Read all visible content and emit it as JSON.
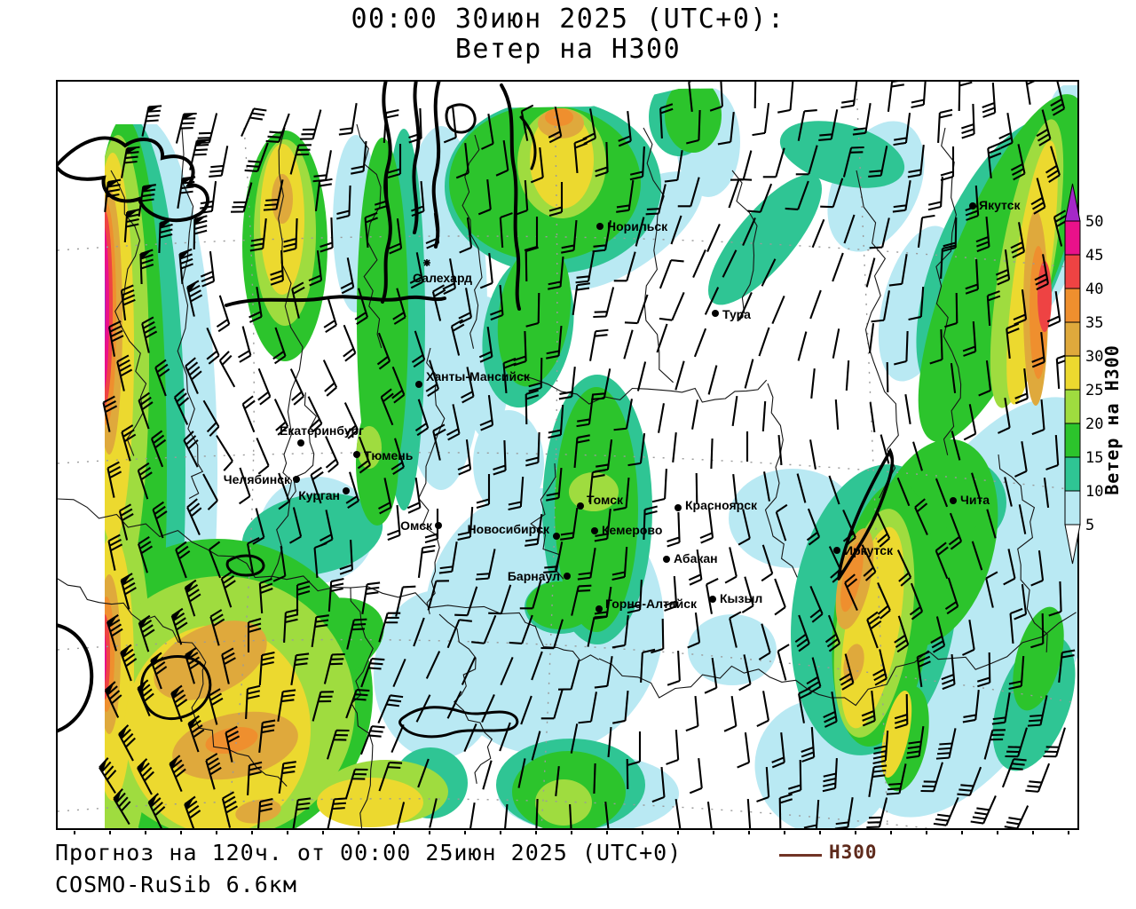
{
  "title": {
    "line1": "00:00 30июн 2025 (UTC+0):",
    "line2": "Ветер на H300"
  },
  "footer": {
    "forecast": "Прогноз на 120ч. от 00:00 25июн 2025 (UTC+0)",
    "model": "COSMO-RuSib 6.6км",
    "legend_label": "H300",
    "legend_line_color": "#713425"
  },
  "colorbar": {
    "title": "Ветер на H300",
    "tick_values": [
      50,
      45,
      40,
      35,
      30,
      25,
      20,
      15,
      10,
      5
    ],
    "segment_colors_top_to_bottom": [
      "#e9118a",
      "#ee4343",
      "#ef8f2e",
      "#dfa93c",
      "#ecd92f",
      "#9fdc3f",
      "#2cc42c",
      "#2fc594",
      "#b9e9f3"
    ],
    "above_max_color": "#a428c8",
    "below_min_color": "#ffffff"
  },
  "cities": [
    {
      "name": "Норильск",
      "dot": [
        611,
        163
      ],
      "label": [
        619,
        168
      ],
      "anchor": "start",
      "marker": "dot"
    },
    {
      "name": "Салехард",
      "dot": [
        416,
        204
      ],
      "label": [
        400,
        226
      ],
      "anchor": "start",
      "marker": "star"
    },
    {
      "name": "Тура",
      "dot": [
        741,
        261
      ],
      "label": [
        749,
        267
      ],
      "anchor": "start",
      "marker": "dot"
    },
    {
      "name": "Ханты-Мансийск",
      "dot": [
        407,
        341
      ],
      "label": [
        415,
        337
      ],
      "anchor": "start",
      "marker": "dot"
    },
    {
      "name": "Екатеринбург",
      "dot": [
        274,
        407
      ],
      "label": [
        250,
        398
      ],
      "anchor": "start",
      "marker": "dot"
    },
    {
      "name": "Тюмень",
      "dot": [
        337,
        420
      ],
      "label": [
        345,
        426
      ],
      "anchor": "start",
      "marker": "dot"
    },
    {
      "name": "Челябинск",
      "dot": [
        269,
        448
      ],
      "label": [
        262,
        453
      ],
      "anchor": "end",
      "marker": "dot"
    },
    {
      "name": "Курган",
      "dot": [
        325,
        461
      ],
      "label": [
        318,
        471
      ],
      "anchor": "end",
      "marker": "dot"
    },
    {
      "name": "Омск",
      "dot": [
        429,
        500
      ],
      "label": [
        422,
        505
      ],
      "anchor": "end",
      "marker": "dot"
    },
    {
      "name": "Новосибирск",
      "dot": [
        562,
        512
      ],
      "label": [
        554,
        509
      ],
      "anchor": "end",
      "marker": "dot"
    },
    {
      "name": "Томск",
      "dot": [
        589,
        478
      ],
      "label": [
        596,
        476
      ],
      "anchor": "start",
      "marker": "dot"
    },
    {
      "name": "Кемерово",
      "dot": [
        605,
        506
      ],
      "label": [
        613,
        510
      ],
      "anchor": "start",
      "marker": "dot"
    },
    {
      "name": "Красноярск",
      "dot": [
        699,
        480
      ],
      "label": [
        707,
        482
      ],
      "anchor": "start",
      "marker": "dot"
    },
    {
      "name": "Абакан",
      "dot": [
        686,
        538
      ],
      "label": [
        694,
        542
      ],
      "anchor": "start",
      "marker": "dot"
    },
    {
      "name": "Барнаул",
      "dot": [
        574,
        557
      ],
      "label": [
        566,
        562
      ],
      "anchor": "end",
      "marker": "dot"
    },
    {
      "name": "Горно-Алтайск",
      "dot": [
        610,
        594
      ],
      "label": [
        617,
        593
      ],
      "anchor": "start",
      "marker": "dot"
    },
    {
      "name": "Кызыл",
      "dot": [
        738,
        583
      ],
      "label": [
        746,
        587
      ],
      "anchor": "start",
      "marker": "dot"
    },
    {
      "name": "Иркутск",
      "dot": [
        878,
        528
      ],
      "label": [
        886,
        533
      ],
      "anchor": "start",
      "marker": "dot"
    },
    {
      "name": "Чита",
      "dot": [
        1009,
        472
      ],
      "label": [
        1017,
        476
      ],
      "anchor": "start",
      "marker": "dot"
    },
    {
      "name": "Якутск",
      "dot": [
        1031,
        140
      ],
      "label": [
        1038,
        144
      ],
      "anchor": "start",
      "marker": "dot"
    }
  ]
}
